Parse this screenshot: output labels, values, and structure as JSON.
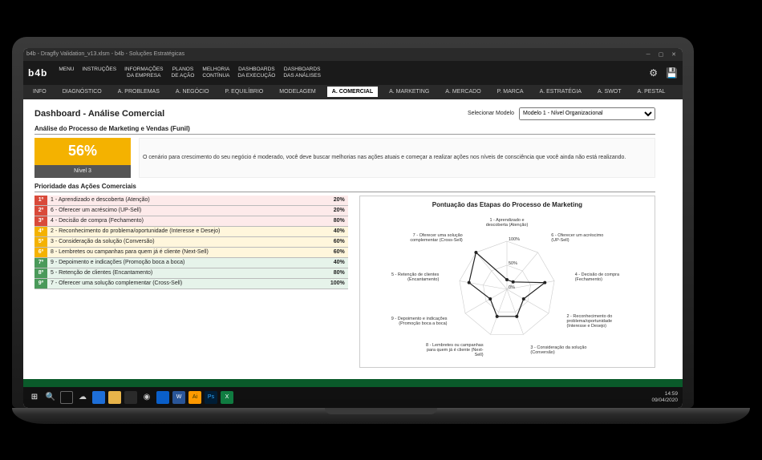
{
  "titlebar": {
    "title": "b4b - Dragfly Validation_v13.xlsm - b4b - Soluções Estratégicas"
  },
  "ribbon": {
    "logo": "b4b",
    "items": [
      "MENU",
      "INSTRUÇÕES",
      "INFORMAÇÕES\nDA EMPRESA",
      "PLANOS\nDE AÇÃO",
      "MELHORIA\nCONTÍNUA",
      "DASHBOARDS\nDA EXECUÇÃO",
      "DASHBOARDS\nDAS ANÁLISES"
    ]
  },
  "tabs": {
    "items": [
      "INFO",
      "DIAGNÓSTICO",
      "A. PROBLEMAS",
      "A. NEGÓCIO",
      "P. EQUILÍBRIO",
      "MODELAGEM",
      "A. COMERCIAL",
      "A. MARKETING",
      "A. MERCADO",
      "P. MARCA",
      "A. ESTRATÉGIA",
      "A. SWOT",
      "A. PESTAL"
    ],
    "activeIndex": 6
  },
  "header": {
    "title": "Dashboard - Análise Comercial",
    "selectorLabel": "Selecionar Modelo",
    "selectorValue": "Modelo 1 - Nível Organizacional"
  },
  "funnel": {
    "section": "Análise do Processo de Marketing e Vendas (Funil)",
    "pct": "56%",
    "level": "Nível 3",
    "desc": "O cenário para crescimento do seu negócio é moderado, você deve buscar melhorias nas ações atuais e começar a realizar ações nos níveis de consciência que você ainda não está realizando.",
    "pctColor": "#f4b200"
  },
  "priorities": {
    "section": "Prioridade das Ações Comerciais",
    "rows": [
      {
        "rank": "1º",
        "label": "1 - Aprendizado e descoberta (Atenção)",
        "pct": "20%",
        "rankBg": "#d94a3a",
        "rowBg": "#fdeaea"
      },
      {
        "rank": "2º",
        "label": "6 - Oferecer um acréscimo (UP-Sell)",
        "pct": "20%",
        "rankBg": "#d94a3a",
        "rowBg": "#fdeaea"
      },
      {
        "rank": "3º",
        "label": "4 - Decisão de compra (Fechamento)",
        "pct": "80%",
        "rankBg": "#d94a3a",
        "rowBg": "#fdeaea"
      },
      {
        "rank": "4º",
        "label": "2 - Reconhecimento do problema/oportunidade (Interesse e Desejo)",
        "pct": "40%",
        "rankBg": "#f4b200",
        "rowBg": "#fff6dc"
      },
      {
        "rank": "5º",
        "label": "3 - Consideração da solução (Conversão)",
        "pct": "60%",
        "rankBg": "#f4b200",
        "rowBg": "#fff6dc"
      },
      {
        "rank": "6º",
        "label": "8 - Lembretes ou campanhas para quem já é cliente (Next-Sell)",
        "pct": "60%",
        "rankBg": "#f4b200",
        "rowBg": "#fff6dc"
      },
      {
        "rank": "7º",
        "label": "9 - Depoimento e indicações (Promoção boca a boca)",
        "pct": "40%",
        "rankBg": "#4a9a5a",
        "rowBg": "#e6f3ea"
      },
      {
        "rank": "8º",
        "label": "5 - Retenção de clientes (Encantamento)",
        "pct": "80%",
        "rankBg": "#4a9a5a",
        "rowBg": "#e6f3ea"
      },
      {
        "rank": "9º",
        "label": "7 - Oferecer uma solução complementar (Cross-Sell)",
        "pct": "100%",
        "rankBg": "#4a9a5a",
        "rowBg": "#e6f3ea"
      }
    ]
  },
  "radar": {
    "title": "Pontuação das Etapas do Processo de Marketing",
    "rings": [
      "0%",
      "50%",
      "100%"
    ],
    "ringColor": "#cccccc",
    "lineColor": "#222222",
    "markerColor": "#222222",
    "axes": [
      {
        "label": "1 - Aprendizado e\ndescoberta (Atenção)",
        "value": 20
      },
      {
        "label": "6 - Oferecer um acréscimo\n(UP-Sell)",
        "value": 20
      },
      {
        "label": "4 - Decisão de compra\n(Fechamento)",
        "value": 80
      },
      {
        "label": "2 - Reconhecimento do\nproblema/oportunidade\n(Interesse e Desejo)",
        "value": 40
      },
      {
        "label": "3 - Consideração da solução\n(Conversão)",
        "value": 60
      },
      {
        "label": "8 - Lembretes ou campanhas\npara quem já é cliente (Next-\nSell)",
        "value": 60
      },
      {
        "label": "9 - Depoimento e indicações\n(Promoção boca a boca)",
        "value": 40
      },
      {
        "label": "5 - Retenção de clientes\n(Encantamento)",
        "value": 80
      },
      {
        "label": "7 - Oferecer uma solução\ncomplementar (Cross-Sell)",
        "value": 100
      }
    ]
  },
  "taskbar": {
    "time": "14:59",
    "date": "09/04/2020"
  }
}
